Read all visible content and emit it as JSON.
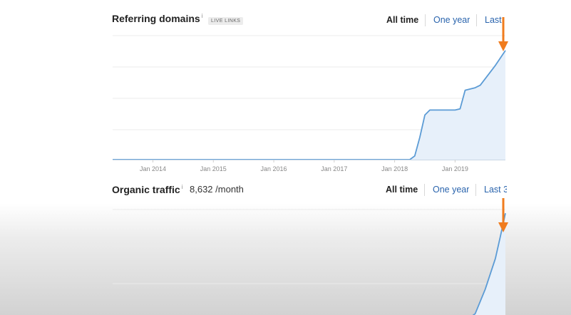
{
  "panels": {
    "referring_domains": {
      "title": "Referring domains",
      "info": "i",
      "badge": "LIVE LINKS",
      "range": {
        "all_time": "All time",
        "one_year": "One year",
        "last": "Last"
      }
    },
    "organic_traffic": {
      "title": "Organic traffic",
      "info": "i",
      "metric": "8,632 /month",
      "range": {
        "all_time": "All time",
        "one_year": "One year",
        "last": "Last 3"
      }
    }
  },
  "colors": {
    "line": "#5b9bd5",
    "area": "#e7f0fa",
    "grid": "#ebebeb",
    "arrow": "#f07c1e",
    "link": "#2a64ad"
  },
  "chart_data": [
    {
      "type": "area",
      "x_ticks": [
        "Jan 2014",
        "Jan 2015",
        "Jan 2016",
        "Jan 2017",
        "Jan 2018",
        "Jan 2019"
      ],
      "xlim": [
        "2013-05",
        "2019-11"
      ],
      "ylim": [
        0,
        100
      ],
      "grid": true,
      "points": [
        [
          "2013-05",
          0
        ],
        [
          "2018-04",
          0
        ],
        [
          "2018-05",
          3
        ],
        [
          "2018-06",
          18
        ],
        [
          "2018-07",
          36
        ],
        [
          "2018-08",
          40
        ],
        [
          "2019-01",
          40
        ],
        [
          "2019-02",
          41
        ],
        [
          "2019-03",
          56
        ],
        [
          "2019-05",
          58
        ],
        [
          "2019-06",
          60
        ],
        [
          "2019-09",
          76
        ],
        [
          "2019-11",
          88
        ]
      ],
      "annotation": "down-arrow-at-latest-point"
    },
    {
      "type": "area",
      "xlim": [
        "2013-05",
        "2019-11"
      ],
      "ylim": [
        0,
        100
      ],
      "grid": true,
      "points": [
        [
          "2018-06",
          2
        ],
        [
          "2018-08",
          5
        ],
        [
          "2018-11",
          5
        ],
        [
          "2019-01",
          7
        ],
        [
          "2019-03",
          9
        ],
        [
          "2019-05",
          15
        ],
        [
          "2019-07",
          35
        ],
        [
          "2019-09",
          60
        ],
        [
          "2019-10",
          78
        ],
        [
          "2019-11",
          97
        ]
      ],
      "annotation": "down-arrow-at-latest-point"
    }
  ]
}
